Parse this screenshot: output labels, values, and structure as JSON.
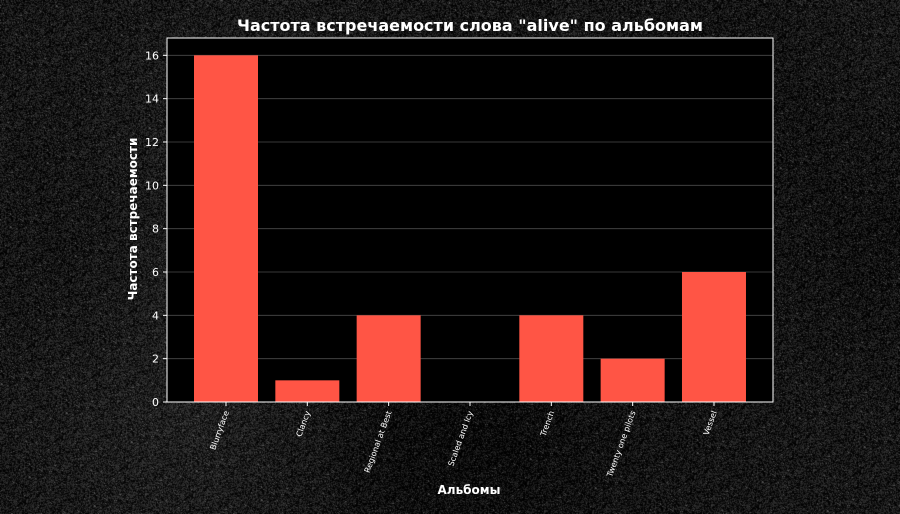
{
  "chart_data": {
    "type": "bar",
    "title": "Частота встречаемости слова \"alive\" по альбомам",
    "xlabel": "Альбомы",
    "ylabel": "Частота встречаемости",
    "categories": [
      "Blurryface",
      "Clancy",
      "Regional at Best",
      "Scaled and Icy",
      "Trench",
      "Twenty one pilots",
      "Vessel"
    ],
    "values": [
      16,
      1,
      4,
      0,
      4,
      2,
      6
    ],
    "ylim": [
      0,
      16.8
    ],
    "yticks": [
      0,
      2,
      4,
      6,
      8,
      10,
      12,
      14,
      16
    ],
    "grid": "horizontal",
    "legend": "none",
    "colors": {
      "bar": "#ff5545",
      "background": "#000000",
      "text": "#ffffff",
      "axis": "#ffffff",
      "grid": "#4a4a4a"
    }
  }
}
